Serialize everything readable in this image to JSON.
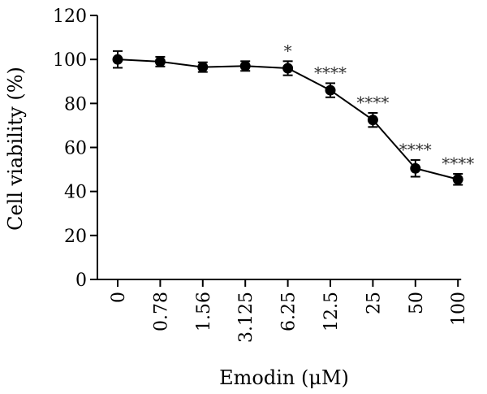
{
  "chart_data": {
    "type": "line",
    "title": "",
    "xlabel": "Emodin (μM)",
    "ylabel": "Cell viability (%)",
    "categories": [
      "0",
      "0.78",
      "1.56",
      "3.125",
      "6.25",
      "12.5",
      "25",
      "50",
      "100"
    ],
    "values": [
      100,
      99,
      96.5,
      97,
      96,
      86,
      72.5,
      50.5,
      45.5
    ],
    "errors": [
      3.8,
      2.2,
      2.2,
      2.2,
      3.2,
      3.2,
      3.2,
      3.8,
      2.5
    ],
    "significance": [
      "",
      "",
      "",
      "",
      "*",
      "****",
      "****",
      "****",
      "****"
    ],
    "ylim": [
      0,
      120
    ],
    "yticks": [
      0,
      20,
      40,
      60,
      80,
      100,
      120
    ],
    "grid": false,
    "legend": "none",
    "colors": {
      "line": "#000000",
      "marker": "#000000"
    }
  }
}
